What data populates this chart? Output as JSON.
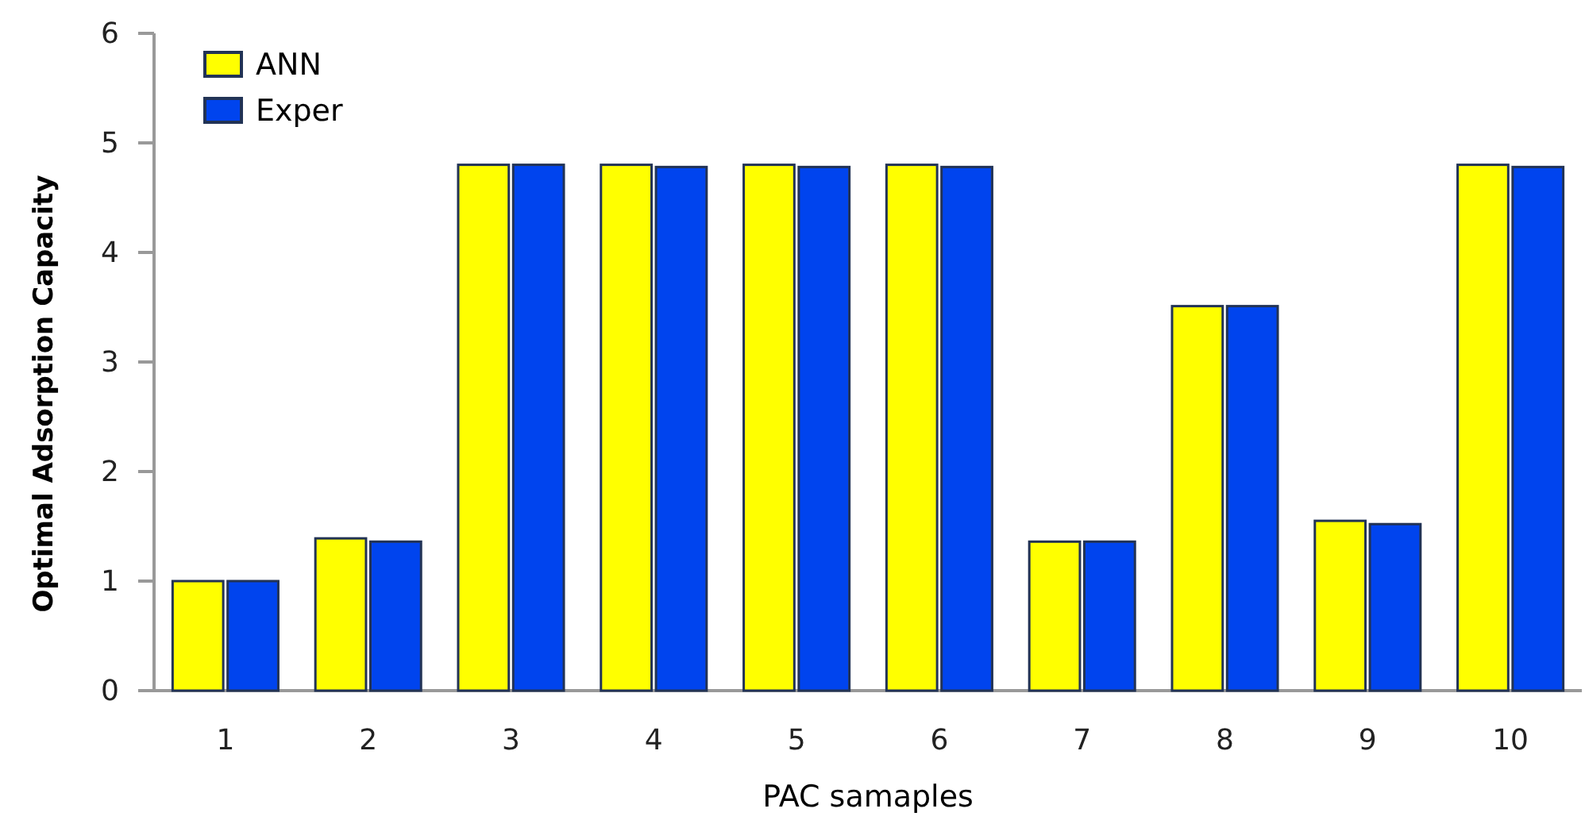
{
  "chart_data": {
    "type": "bar",
    "xlabel": "PAC samaples",
    "ylabel": "Optimal Adsorption Capacity",
    "categories": [
      "1",
      "2",
      "3",
      "4",
      "5",
      "6",
      "7",
      "8",
      "9",
      "10"
    ],
    "series": [
      {
        "name": "ANN",
        "color": "#ffff00",
        "values": [
          1.0,
          1.39,
          4.8,
          4.8,
          4.8,
          4.8,
          1.36,
          3.51,
          1.55,
          4.8
        ]
      },
      {
        "name": "Exper",
        "color": "#0044ee",
        "values": [
          1.0,
          1.36,
          4.8,
          4.78,
          4.78,
          4.78,
          1.36,
          3.51,
          1.52,
          4.78
        ]
      }
    ],
    "ylim": [
      0,
      6
    ],
    "yticks": [
      0,
      1,
      2,
      3,
      4,
      5,
      6
    ],
    "grid": false,
    "legend": "top left"
  }
}
